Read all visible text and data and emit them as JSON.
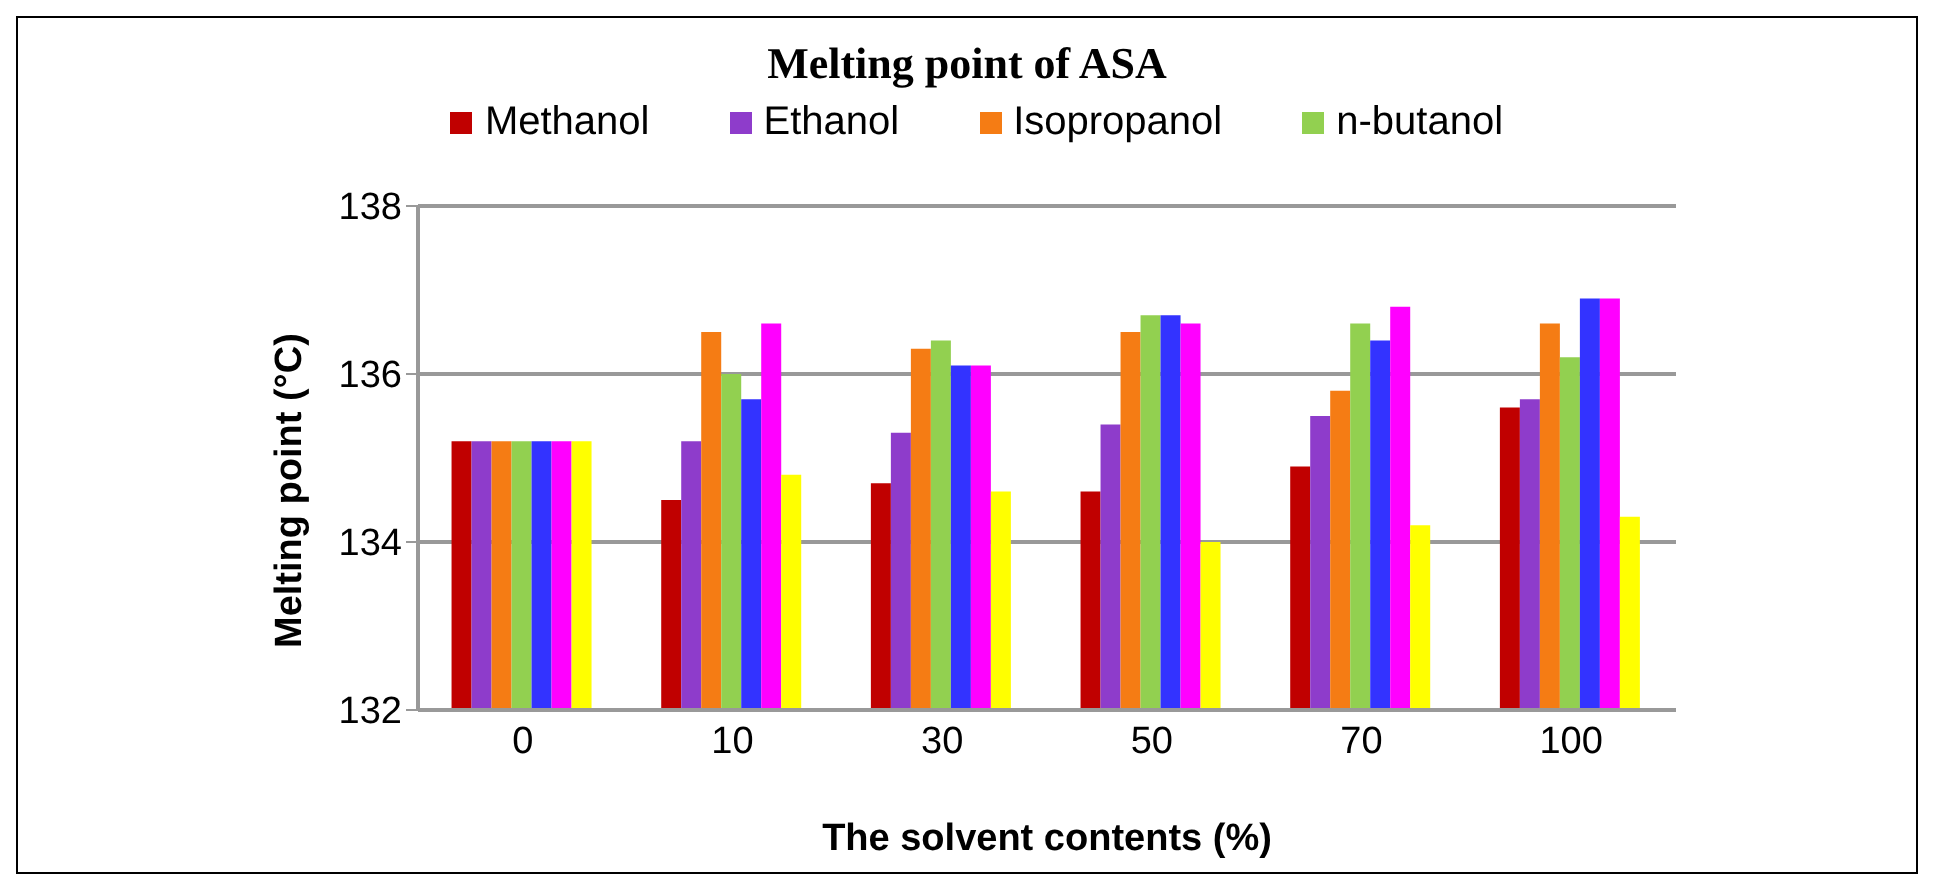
{
  "chart_data": {
    "type": "bar",
    "title": "Melting point of ASA",
    "xlabel": "The solvent contents (%)",
    "ylabel": "Melting point (°C)",
    "categories": [
      "0",
      "10",
      "30",
      "50",
      "70",
      "100"
    ],
    "series": [
      {
        "name": "Methanol",
        "color": "#c00000",
        "values": [
          135.2,
          134.5,
          134.7,
          134.6,
          134.9,
          135.6
        ]
      },
      {
        "name": "Ethanol",
        "color": "#8e3ccb",
        "values": [
          135.2,
          135.2,
          135.3,
          135.4,
          135.5,
          135.7
        ]
      },
      {
        "name": "Isopropanol",
        "color": "#f57c14",
        "values": [
          135.2,
          136.5,
          136.3,
          136.5,
          135.8,
          136.6
        ]
      },
      {
        "name": "n-butanol",
        "color": "#92d050",
        "values": [
          135.2,
          136.0,
          136.4,
          136.7,
          136.6,
          136.2
        ]
      },
      {
        "color": "#3333ff",
        "values": [
          135.2,
          135.7,
          136.1,
          136.7,
          136.4,
          136.9
        ]
      },
      {
        "color": "#ff00ff",
        "values": [
          135.2,
          136.6,
          136.1,
          136.6,
          136.8,
          136.9
        ]
      },
      {
        "color": "#ffff00",
        "values": [
          135.2,
          134.8,
          134.6,
          134.0,
          134.2,
          134.3
        ]
      }
    ],
    "ylim": [
      132,
      138
    ],
    "yticks": [
      132,
      134,
      136,
      138
    ],
    "grid": "y",
    "legend": "top"
  }
}
